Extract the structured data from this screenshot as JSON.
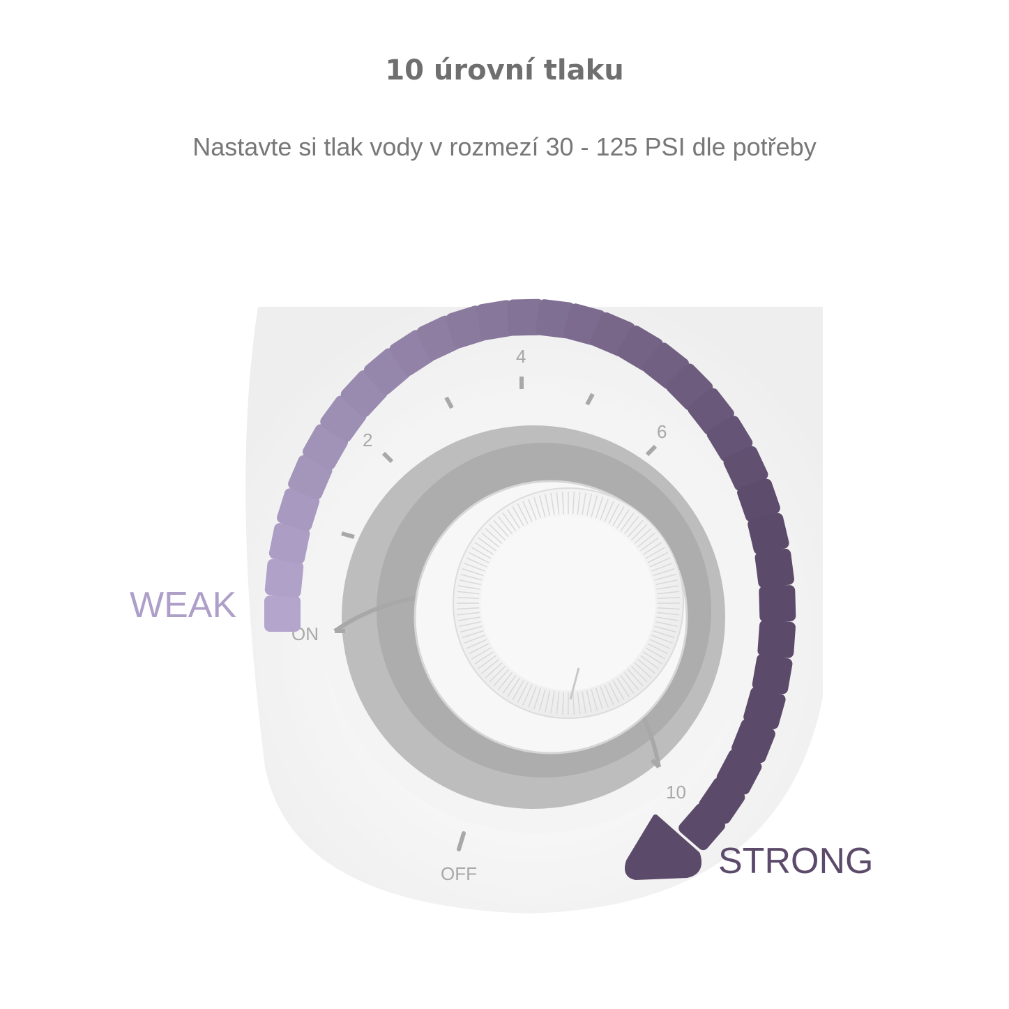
{
  "title": "10 úrovní tlaku",
  "subtitle": "Nastavte si tlak vody v rozmezí 30 - 125 PSI dle potřeby",
  "labels": {
    "weak": "WEAK",
    "strong": "STRONG"
  },
  "dial": {
    "scale_labels": {
      "on": "ON",
      "two": "2",
      "four": "4",
      "six": "6",
      "ten": "10",
      "off": "OFF"
    }
  },
  "colors": {
    "weak": "#b3a5cc",
    "strong": "#5c4a6a",
    "ring": "#bdbdbd",
    "text": "#6f6f6f"
  }
}
